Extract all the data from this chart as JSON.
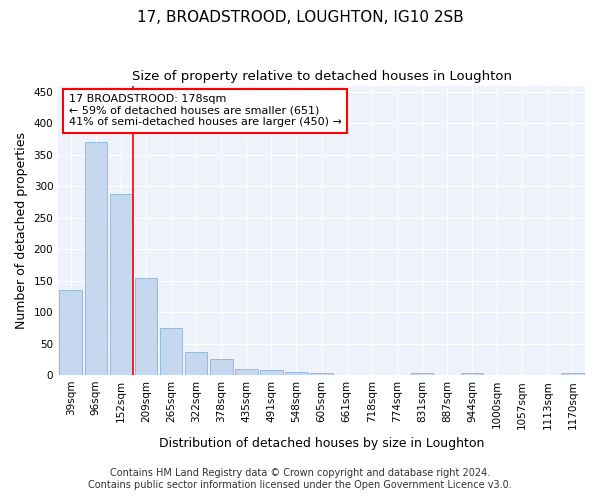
{
  "title": "17, BROADSTROOD, LOUGHTON, IG10 2SB",
  "subtitle": "Size of property relative to detached houses in Loughton",
  "xlabel": "Distribution of detached houses by size in Loughton",
  "ylabel": "Number of detached properties",
  "categories": [
    "39sqm",
    "96sqm",
    "152sqm",
    "209sqm",
    "265sqm",
    "322sqm",
    "378sqm",
    "435sqm",
    "491sqm",
    "548sqm",
    "605sqm",
    "661sqm",
    "718sqm",
    "774sqm",
    "831sqm",
    "887sqm",
    "944sqm",
    "1000sqm",
    "1057sqm",
    "1113sqm",
    "1170sqm"
  ],
  "values": [
    135,
    370,
    288,
    155,
    75,
    37,
    25,
    10,
    8,
    5,
    4,
    0,
    0,
    0,
    3,
    0,
    3,
    0,
    0,
    0,
    3
  ],
  "bar_color": "#c5d8f0",
  "bar_edgecolor": "#8ab4d8",
  "redline_x": 2.5,
  "annotation_text": "17 BROADSTROOD: 178sqm\n← 59% of detached houses are smaller (651)\n41% of semi-detached houses are larger (450) →",
  "annotation_box_color": "white",
  "annotation_box_edgecolor": "red",
  "redline_color": "red",
  "ylim": [
    0,
    460
  ],
  "yticks": [
    0,
    50,
    100,
    150,
    200,
    250,
    300,
    350,
    400,
    450
  ],
  "footer1": "Contains HM Land Registry data © Crown copyright and database right 2024.",
  "footer2": "Contains public sector information licensed under the Open Government Licence v3.0.",
  "bg_color": "#eef2fb",
  "grid_color": "white",
  "title_fontsize": 11,
  "subtitle_fontsize": 9.5,
  "axis_label_fontsize": 9,
  "tick_fontsize": 7.5,
  "annotation_fontsize": 8,
  "footer_fontsize": 7
}
